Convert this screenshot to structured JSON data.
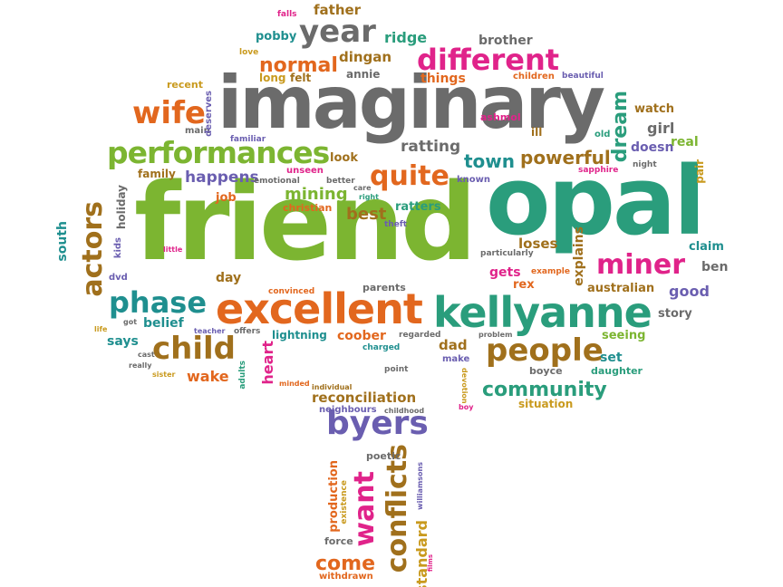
{
  "colors": {
    "gray": "#6b6b6b",
    "orange": "#e2671e",
    "green": "#2a9d7c",
    "lime": "#7cb531",
    "magenta": "#e0238a",
    "gold": "#c99a1e",
    "purple": "#6a5eb0",
    "brown": "#a0701c",
    "teal": "#1f8f8f"
  },
  "words": {
    "friend": "friend",
    "opal": "opal",
    "imaginary": "imaginary",
    "kellyanne": "kellyanne",
    "excellent": "excellent",
    "performances": "performances",
    "different": "different",
    "year": "year",
    "byers": "byers",
    "child": "child",
    "people": "people",
    "phase": "phase",
    "miner": "miner",
    "wife": "wife",
    "quite": "quite",
    "actors": "actors",
    "conflicts": "conflicts",
    "want": "want",
    "community": "community",
    "normal": "normal",
    "ridge": "ridge",
    "town": "town",
    "powerful": "powerful",
    "ratting": "ratting",
    "dream": "dream",
    "mining": "mining",
    "best": "best",
    "happens": "happens",
    "come": "come",
    "standard": "standard",
    "reconciliation": "reconciliation",
    "father": "father",
    "brother": "brother",
    "pobby": "pobby",
    "dingan": "dingan",
    "annie": "annie",
    "things": "things",
    "children": "children",
    "long": "long",
    "felt": "felt",
    "love": "love",
    "falls": "falls",
    "recent": "recent",
    "beautiful": "beautiful",
    "main": "main",
    "deserves": "deserves",
    "watch": "watch",
    "girl": "girl",
    "real": "real",
    "doesn": "doesn",
    "ill": "ill",
    "ashmol": "ashmol",
    "old": "old",
    "familiar": "familiar",
    "look": "look",
    "family": "family",
    "unseen": "unseen",
    "emotional": "emotional",
    "better": "better",
    "known": "known",
    "sapphire": "sapphire",
    "night": "night",
    "pair": "pair",
    "job": "job",
    "christian": "christian",
    "care": "care",
    "right": "right",
    "ratters": "ratters",
    "holiday": "holiday",
    "south": "south",
    "kids": "kids",
    "dvd": "dvd",
    "little": "little",
    "theft": "theft",
    "loses": "loses",
    "explains": "explains",
    "claim": "claim",
    "particularly": "particularly",
    "ben": "ben",
    "day": "day",
    "gets": "gets",
    "example": "example",
    "rex": "rex",
    "australian": "australian",
    "good": "good",
    "convinced": "convinced",
    "parents": "parents",
    "story": "story",
    "belief": "belief",
    "got": "got",
    "life": "life",
    "teacher": "teacher",
    "offers": "offers",
    "lightning": "lightning",
    "coober": "coober",
    "dad": "dad",
    "seeing": "seeing",
    "says": "says",
    "cast": "cast",
    "really": "really",
    "sister": "sister",
    "charged": "charged",
    "regarded": "regarded",
    "problem": "problem",
    "set": "set",
    "make": "make",
    "boyce": "boyce",
    "daughter": "daughter",
    "wake": "wake",
    "adults": "adults",
    "heart": "heart",
    "minded": "minded",
    "individual": "individual",
    "point": "point",
    "devotion": "devotion",
    "boy": "boy",
    "neighbours": "neighbours",
    "childhood": "childhood",
    "situation": "situation",
    "poetic": "poetic",
    "production": "production",
    "existence": "existence",
    "williamsons": "williamsons",
    "force": "force",
    "withdrawn": "withdrawn",
    "films": "films"
  }
}
